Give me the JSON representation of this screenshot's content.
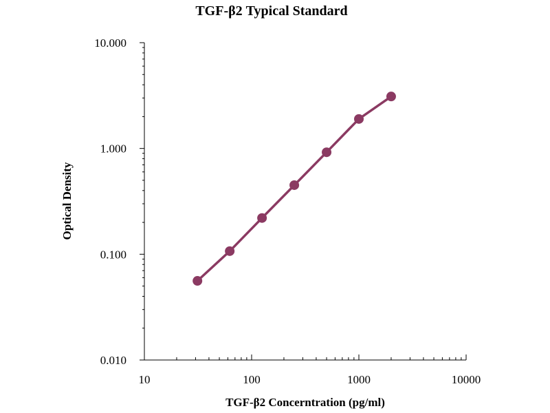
{
  "chart_data": {
    "type": "scatter",
    "title": "TGF-β2 Typical Standard",
    "xlabel": "TGF-β2 Concerntration (pg/ml)",
    "ylabel": "Optical Density",
    "x_scale": "log",
    "y_scale": "log",
    "xlim": [
      10,
      10000
    ],
    "ylim": [
      0.01,
      10
    ],
    "x_ticks": [
      10,
      100,
      1000,
      10000
    ],
    "x_tick_labels": [
      "10",
      "100",
      "1000",
      "10000"
    ],
    "y_ticks": [
      0.01,
      0.1,
      1,
      10
    ],
    "y_tick_labels": [
      "0.010",
      "0.100",
      "1.000",
      "10.000"
    ],
    "grid": false,
    "legend": "none",
    "series": [
      {
        "x": [
          31.25,
          62.5,
          125,
          250,
          500,
          1000,
          2000
        ],
        "y": [
          0.056,
          0.107,
          0.22,
          0.45,
          0.92,
          1.9,
          3.1
        ],
        "marker_color": "#8b3a62",
        "line_color": "#8b3a62"
      }
    ]
  }
}
